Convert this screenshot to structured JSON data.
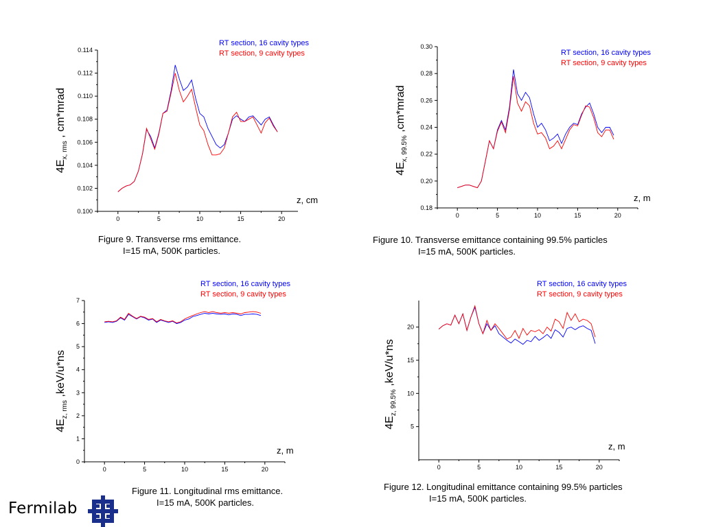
{
  "logo": {
    "text": "Fermilab",
    "icon": "fermilab-logo-icon",
    "color": "#1a2f8c"
  },
  "colors": {
    "series16": "#0000ff",
    "series9": "#ff0000"
  },
  "captions": [
    {
      "line1": "Figure 9.  Transverse rms emittance.",
      "line2": "I=15 mA, 500K particles."
    },
    {
      "line1": "Figure 10. Transverse emittance containing 99.5% particles",
      "line2": "I=15 mA, 500K particles."
    },
    {
      "line1": "Figure 11.  Longitudinal  rms emittance.",
      "line2": "I=15 mA, 500K particles."
    },
    {
      "line1": "Figure 12. Longitudinal emittance containing 99.5% particles",
      "line2": "I=15 mA, 500K particles."
    }
  ],
  "chart_data": [
    {
      "type": "line",
      "title": "",
      "ylabel_main": "4E",
      "ylabel_sub": "x, rms",
      "ylabel_suffix": " , cm*mrad",
      "xlabel": "z, cm",
      "xlim": [
        -2.5,
        22
      ],
      "ylim": [
        0.1,
        0.114
      ],
      "xticks": [
        0,
        5,
        10,
        15,
        20
      ],
      "xtick_labels": [
        "0",
        "5",
        "10",
        "15",
        "20"
      ],
      "yticks": [
        0.1,
        0.102,
        0.104,
        0.106,
        0.108,
        0.11,
        0.112,
        0.114
      ],
      "ytick_labels": [
        "0.100",
        "0.102",
        "0.104",
        "0.106",
        "0.108",
        "0.110",
        "0.112",
        "0.114"
      ],
      "legend": [
        "RT section, 16 cavity types",
        "RT section,  9 cavity types"
      ],
      "series": [
        {
          "name": "RT section, 16 cavity types",
          "color": "#0000ff",
          "x": [
            0,
            0.5,
            1,
            1.5,
            2,
            2.5,
            3,
            3.5,
            4,
            4.5,
            5,
            5.5,
            6,
            6.5,
            7,
            7.5,
            8,
            8.5,
            9,
            9.5,
            10,
            10.5,
            11,
            11.5,
            12,
            12.5,
            13,
            13.5,
            14,
            14.5,
            15,
            15.5,
            16,
            16.5,
            17,
            17.5,
            18,
            18.5,
            19,
            19.5
          ],
          "y": [
            0.1017,
            0.102,
            0.1022,
            0.1023,
            0.1026,
            0.1035,
            0.105,
            0.1071,
            0.1065,
            0.1055,
            0.1068,
            0.1085,
            0.1088,
            0.1105,
            0.1127,
            0.1115,
            0.1105,
            0.1108,
            0.1114,
            0.1098,
            0.1085,
            0.1082,
            0.1072,
            0.1065,
            0.1058,
            0.1055,
            0.1058,
            0.1068,
            0.108,
            0.1083,
            0.108,
            0.1078,
            0.1082,
            0.1083,
            0.1079,
            0.1075,
            0.108,
            0.1082,
            0.1075,
            0.1069
          ]
        },
        {
          "name": "RT section,  9 cavity types",
          "color": "#ff0000",
          "x": [
            0,
            0.5,
            1,
            1.5,
            2,
            2.5,
            3,
            3.5,
            4,
            4.5,
            5,
            5.5,
            6,
            6.5,
            7,
            7.5,
            8,
            8.5,
            9,
            9.5,
            10,
            10.5,
            11,
            11.5,
            12,
            12.5,
            13,
            13.5,
            14,
            14.5,
            15,
            15.5,
            16,
            16.5,
            17,
            17.5,
            18,
            18.5,
            19,
            19.5
          ],
          "y": [
            0.1017,
            0.102,
            0.1022,
            0.1023,
            0.1026,
            0.1035,
            0.105,
            0.1072,
            0.1063,
            0.1054,
            0.1067,
            0.1085,
            0.1087,
            0.1103,
            0.112,
            0.1105,
            0.1095,
            0.11,
            0.1106,
            0.109,
            0.1075,
            0.107,
            0.1058,
            0.1049,
            0.1049,
            0.105,
            0.1055,
            0.1068,
            0.1082,
            0.1086,
            0.1078,
            0.1078,
            0.108,
            0.1082,
            0.1075,
            0.1068,
            0.1077,
            0.1081,
            0.1074,
            0.1069
          ]
        }
      ]
    },
    {
      "type": "line",
      "title": "",
      "ylabel_main": "4E",
      "ylabel_sub": "x, 99.5%",
      "ylabel_suffix": " ,cm*mrad",
      "xlabel": "z, m",
      "xlim": [
        -2.5,
        22.5
      ],
      "ylim": [
        0.18,
        0.3
      ],
      "xticks": [
        0,
        5,
        10,
        15,
        20
      ],
      "xtick_labels": [
        "0",
        "5",
        "10",
        "15",
        "20"
      ],
      "yticks": [
        0.18,
        0.2,
        0.22,
        0.24,
        0.26,
        0.28,
        0.3
      ],
      "ytick_labels": [
        "0.18",
        "0.20",
        "0.22",
        "0.24",
        "0.26",
        "0.28",
        "0.30"
      ],
      "legend": [
        "RT section, 16 cavity types",
        "RT section,  9 cavity types"
      ],
      "series": [
        {
          "name": "RT section, 16 cavity types",
          "color": "#0000ff",
          "x": [
            0,
            0.5,
            1,
            1.5,
            2,
            2.5,
            3,
            3.5,
            4,
            4.5,
            5,
            5.5,
            6,
            6.5,
            7,
            7.5,
            8,
            8.5,
            9,
            9.5,
            10,
            10.5,
            11,
            11.5,
            12,
            12.5,
            13,
            13.5,
            14,
            14.5,
            15,
            15.5,
            16,
            16.5,
            17,
            17.5,
            18,
            18.5,
            19,
            19.5
          ],
          "y": [
            0.195,
            0.196,
            0.197,
            0.197,
            0.196,
            0.195,
            0.2,
            0.215,
            0.23,
            0.224,
            0.238,
            0.245,
            0.238,
            0.255,
            0.283,
            0.265,
            0.26,
            0.266,
            0.262,
            0.25,
            0.24,
            0.243,
            0.238,
            0.23,
            0.232,
            0.235,
            0.228,
            0.235,
            0.24,
            0.243,
            0.242,
            0.25,
            0.255,
            0.258,
            0.25,
            0.24,
            0.236,
            0.24,
            0.24,
            0.234
          ]
        },
        {
          "name": "RT section,  9 cavity types",
          "color": "#ff0000",
          "x": [
            0,
            0.5,
            1,
            1.5,
            2,
            2.5,
            3,
            3.5,
            4,
            4.5,
            5,
            5.5,
            6,
            6.5,
            7,
            7.5,
            8,
            8.5,
            9,
            9.5,
            10,
            10.5,
            11,
            11.5,
            12,
            12.5,
            13,
            13.5,
            14,
            14.5,
            15,
            15.5,
            16,
            16.5,
            17,
            17.5,
            18,
            18.5,
            19,
            19.5
          ],
          "y": [
            0.195,
            0.196,
            0.197,
            0.197,
            0.196,
            0.195,
            0.2,
            0.215,
            0.23,
            0.224,
            0.237,
            0.244,
            0.236,
            0.253,
            0.278,
            0.258,
            0.252,
            0.259,
            0.256,
            0.243,
            0.235,
            0.236,
            0.232,
            0.224,
            0.226,
            0.23,
            0.224,
            0.231,
            0.238,
            0.242,
            0.241,
            0.249,
            0.256,
            0.255,
            0.247,
            0.236,
            0.233,
            0.238,
            0.238,
            0.231
          ]
        }
      ]
    },
    {
      "type": "line",
      "title": "",
      "ylabel_main": "4E",
      "ylabel_sub": "z, rms",
      "ylabel_suffix": " ,keV/u*ns",
      "xlabel": "z, m",
      "xlim": [
        -2.5,
        22.5
      ],
      "ylim": [
        0,
        7
      ],
      "xticks": [
        0,
        5,
        10,
        15,
        20
      ],
      "xtick_labels": [
        "0",
        "5",
        "10",
        "15",
        "20"
      ],
      "yticks": [
        0,
        1,
        2,
        3,
        4,
        5,
        6,
        7
      ],
      "ytick_labels": [
        "0",
        "1",
        "2",
        "3",
        "4",
        "5",
        "6",
        "7"
      ],
      "legend": [
        "RT section, 16 cavity types",
        "RT section,  9 cavity types"
      ],
      "series": [
        {
          "name": "RT section, 16 cavity types",
          "color": "#0000ff",
          "x": [
            0,
            0.5,
            1,
            1.5,
            2,
            2.5,
            3,
            3.5,
            4,
            4.5,
            5,
            5.5,
            6,
            6.5,
            7,
            7.5,
            8,
            8.5,
            9,
            9.5,
            10,
            10.5,
            11,
            11.5,
            12,
            12.5,
            13,
            13.5,
            14,
            14.5,
            15,
            15.5,
            16,
            16.5,
            17,
            17.5,
            18,
            18.5,
            19,
            19.5
          ],
          "y": [
            6.05,
            6.08,
            6.05,
            6.1,
            6.25,
            6.15,
            6.4,
            6.3,
            6.2,
            6.3,
            6.25,
            6.15,
            6.2,
            6.05,
            6.15,
            6.1,
            6.05,
            6.1,
            6.0,
            6.05,
            6.15,
            6.2,
            6.3,
            6.35,
            6.4,
            6.45,
            6.42,
            6.45,
            6.42,
            6.4,
            6.42,
            6.38,
            6.42,
            6.4,
            6.35,
            6.4,
            6.4,
            6.42,
            6.4,
            6.35
          ]
        },
        {
          "name": "RT section,  9 cavity types",
          "color": "#ff0000",
          "x": [
            0,
            0.5,
            1,
            1.5,
            2,
            2.5,
            3,
            3.5,
            4,
            4.5,
            5,
            5.5,
            6,
            6.5,
            7,
            7.5,
            8,
            8.5,
            9,
            9.5,
            10,
            10.5,
            11,
            11.5,
            12,
            12.5,
            13,
            13.5,
            14,
            14.5,
            15,
            15.5,
            16,
            16.5,
            17,
            17.5,
            18,
            18.5,
            19,
            19.5
          ],
          "y": [
            6.08,
            6.1,
            6.08,
            6.12,
            6.28,
            6.18,
            6.45,
            6.32,
            6.22,
            6.32,
            6.28,
            6.18,
            6.22,
            6.08,
            6.18,
            6.12,
            6.08,
            6.12,
            6.03,
            6.08,
            6.2,
            6.28,
            6.35,
            6.42,
            6.48,
            6.52,
            6.48,
            6.52,
            6.48,
            6.45,
            6.48,
            6.45,
            6.48,
            6.45,
            6.42,
            6.48,
            6.5,
            6.52,
            6.5,
            6.45
          ]
        }
      ]
    },
    {
      "type": "line",
      "title": "",
      "ylabel_main": "4E",
      "ylabel_sub": "z, 99.5%",
      "ylabel_suffix": " ,keV/u*ns",
      "xlabel": "z, m",
      "xlim": [
        -2.5,
        22.5
      ],
      "ylim": [
        0,
        24
      ],
      "xticks": [
        0,
        5,
        10,
        15,
        20
      ],
      "xtick_labels": [
        "0",
        "5",
        "10",
        "15",
        "20"
      ],
      "yticks": [
        5,
        10,
        15,
        20
      ],
      "ytick_labels": [
        "5",
        "10",
        "15",
        "20"
      ],
      "legend": [
        "RT section, 16 cavity types",
        "RT section,  9 cavity types"
      ],
      "series": [
        {
          "name": "RT section, 16 cavity types",
          "color": "#0000ff",
          "x": [
            0,
            0.5,
            1,
            1.5,
            2,
            2.5,
            3,
            3.5,
            4,
            4.5,
            5,
            5.5,
            6,
            6.5,
            7,
            7.5,
            8,
            8.5,
            9,
            9.5,
            10,
            10.5,
            11,
            11.5,
            12,
            12.5,
            13,
            13.5,
            14,
            14.5,
            15,
            15.5,
            16,
            16.5,
            17,
            17.5,
            18,
            18.5,
            19,
            19.5
          ],
          "y": [
            19.7,
            20.2,
            20.5,
            20.3,
            21.8,
            20.5,
            22.0,
            19.5,
            21.5,
            23.0,
            20.5,
            19.0,
            20.5,
            19.5,
            20.2,
            19.0,
            18.5,
            18.0,
            17.6,
            18.2,
            17.8,
            17.4,
            18.0,
            17.8,
            18.6,
            18.0,
            18.4,
            18.9,
            18.3,
            19.6,
            19.2,
            18.5,
            19.8,
            20.0,
            19.6,
            20.0,
            20.2,
            19.8,
            19.5,
            17.5
          ]
        },
        {
          "name": "RT section,  9 cavity types",
          "color": "#ff0000",
          "x": [
            0,
            0.5,
            1,
            1.5,
            2,
            2.5,
            3,
            3.5,
            4,
            4.5,
            5,
            5.5,
            6,
            6.5,
            7,
            7.5,
            8,
            8.5,
            9,
            9.5,
            10,
            10.5,
            11,
            11.5,
            12,
            12.5,
            13,
            13.5,
            14,
            14.5,
            15,
            15.5,
            16,
            16.5,
            17,
            17.5,
            18,
            18.5,
            19,
            19.5
          ],
          "y": [
            19.7,
            20.2,
            20.5,
            20.3,
            21.8,
            20.5,
            22.0,
            19.5,
            21.5,
            23.2,
            20.5,
            19.0,
            21.0,
            19.5,
            20.5,
            19.8,
            19.0,
            18.2,
            18.5,
            19.5,
            18.3,
            19.8,
            18.8,
            19.5,
            19.3,
            19.6,
            19.0,
            20.0,
            19.4,
            21.2,
            20.8,
            19.8,
            22.2,
            21.0,
            22.0,
            20.8,
            21.2,
            21.0,
            20.5,
            18.5
          ]
        }
      ]
    }
  ]
}
